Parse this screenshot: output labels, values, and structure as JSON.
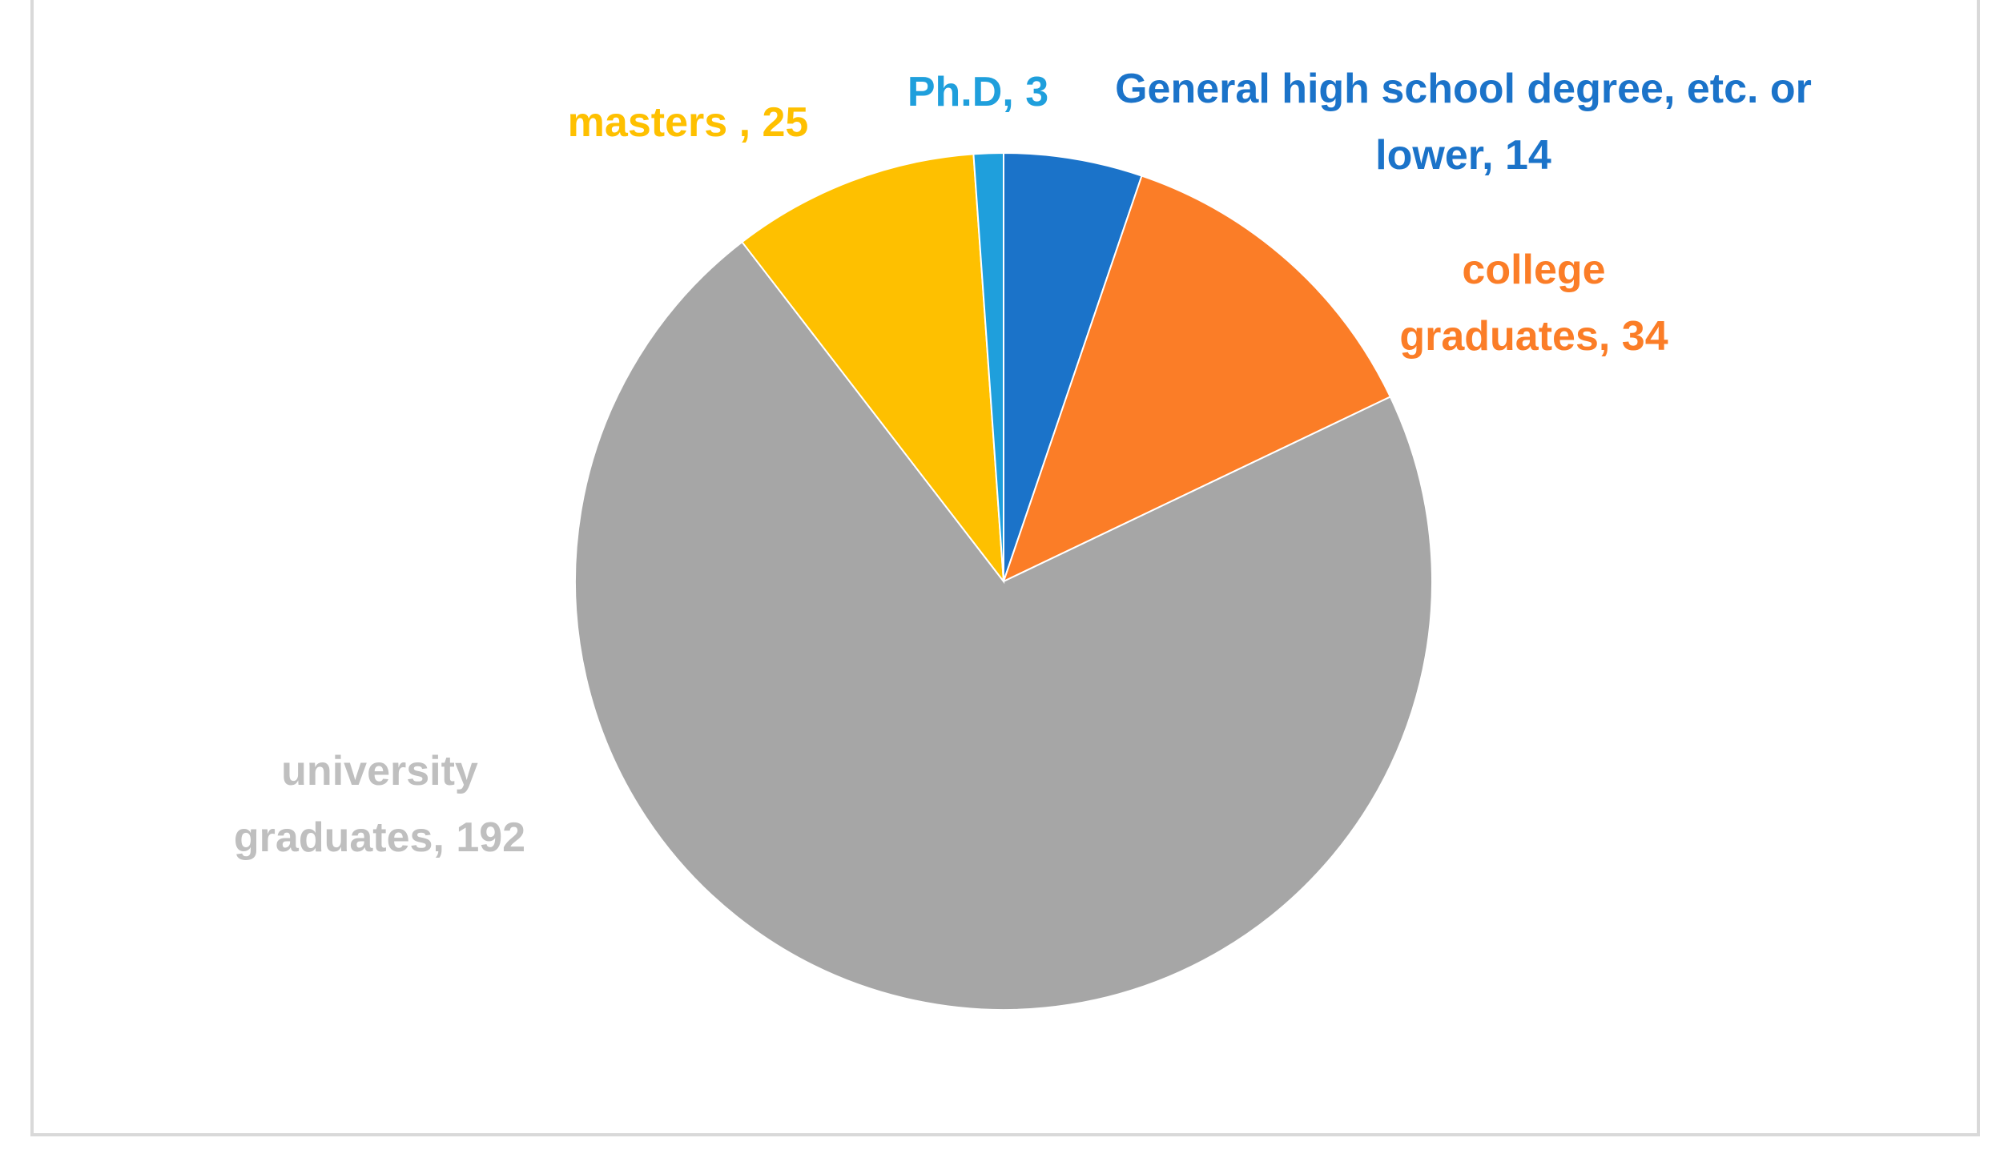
{
  "chart_data": {
    "type": "pie",
    "values": [
      14,
      34,
      192,
      25,
      3
    ],
    "value_labels": [
      "General high school degree, etc. or lower, 14",
      "college graduates, 34",
      "university graduates, 192",
      "masters , 25",
      "Ph.D, 3"
    ],
    "colors": [
      "#1b73c9",
      "#fb7d27",
      "#a6a6a6",
      "#fec000",
      "#1f9fdc"
    ],
    "label_colors": [
      "#1b73c9",
      "#fb7d27",
      "#bfbfbf",
      "#fec000",
      "#1f9fdc"
    ]
  }
}
